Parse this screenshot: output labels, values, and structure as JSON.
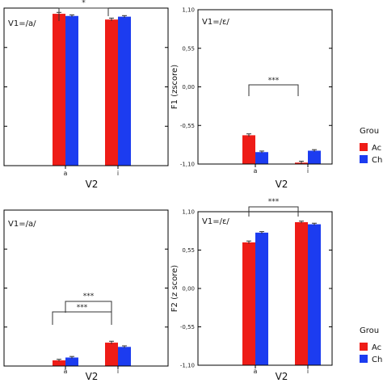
{
  "colors": {
    "red": "#ee1c17",
    "blue": "#1c3cf0",
    "axis": "#000000"
  },
  "legend": {
    "title": "Grou",
    "items": [
      {
        "label": "Ac",
        "color": "#ee1c17"
      },
      {
        "label": "Ch",
        "color": "#1c3cf0"
      }
    ]
  },
  "chart_data": [
    {
      "type": "bar",
      "title": "V1=/a/",
      "xlabel": "V2",
      "ylabel": "",
      "categories": [
        "a",
        "i"
      ],
      "yticks": [],
      "ylim": [
        -1.1,
        1.1
      ],
      "series": [
        {
          "name": "Ac",
          "values": [
            1.02,
            0.94
          ],
          "errors": [
            0.02,
            0.02
          ]
        },
        {
          "name": "Ch",
          "values": [
            0.99,
            0.98
          ],
          "errors": [
            0.015,
            0.015
          ]
        }
      ],
      "significance": [
        {
          "label": "*",
          "from": "a",
          "to": "i"
        }
      ]
    },
    {
      "type": "bar",
      "title": "V1=/ε/",
      "xlabel": "V2",
      "ylabel": "F1 (zscore)",
      "categories": [
        "a",
        "i"
      ],
      "yticks": [
        "1,10",
        "0,55",
        "0,00",
        "-0,55",
        "-1,10"
      ],
      "ylim": [
        -1.1,
        1.1
      ],
      "series": [
        {
          "name": "Ac",
          "values": [
            -0.69,
            -1.08
          ],
          "errors": [
            0.02,
            0.02
          ]
        },
        {
          "name": "Ch",
          "values": [
            -0.93,
            -0.91
          ],
          "errors": [
            0.015,
            0.015
          ]
        }
      ],
      "significance": [
        {
          "label": "***",
          "from": "a",
          "to": "i"
        }
      ]
    },
    {
      "type": "bar",
      "title": "V1=/a/",
      "xlabel": "V2",
      "ylabel": "",
      "categories": [
        "a",
        "i"
      ],
      "yticks": [],
      "ylim": [
        -1.1,
        1.1
      ],
      "series": [
        {
          "name": "Ac",
          "values": [
            -1.02,
            -0.77
          ],
          "errors": [
            0.015,
            0.02
          ]
        },
        {
          "name": "Ch",
          "values": [
            -0.98,
            -0.83
          ],
          "errors": [
            0.015,
            0.015
          ]
        }
      ],
      "significance": [
        {
          "label": "***",
          "from": "a",
          "to": "i"
        },
        {
          "label": "***",
          "from": "a",
          "to": "i"
        }
      ]
    },
    {
      "type": "bar",
      "title": "V1=/ε/",
      "xlabel": "V2",
      "ylabel": "F2 (z score)",
      "categories": [
        "a",
        "i"
      ],
      "yticks": [
        "1,10",
        "0,55",
        "0,00",
        "-0,55",
        "-1,10"
      ],
      "ylim": [
        -1.1,
        1.1
      ],
      "series": [
        {
          "name": "Ac",
          "values": [
            0.66,
            0.95
          ],
          "errors": [
            0.02,
            0.015
          ]
        },
        {
          "name": "Ch",
          "values": [
            0.8,
            0.92
          ],
          "errors": [
            0.015,
            0.015
          ]
        }
      ],
      "significance": [
        {
          "label": "***",
          "from": "a",
          "to": "i"
        }
      ]
    }
  ]
}
